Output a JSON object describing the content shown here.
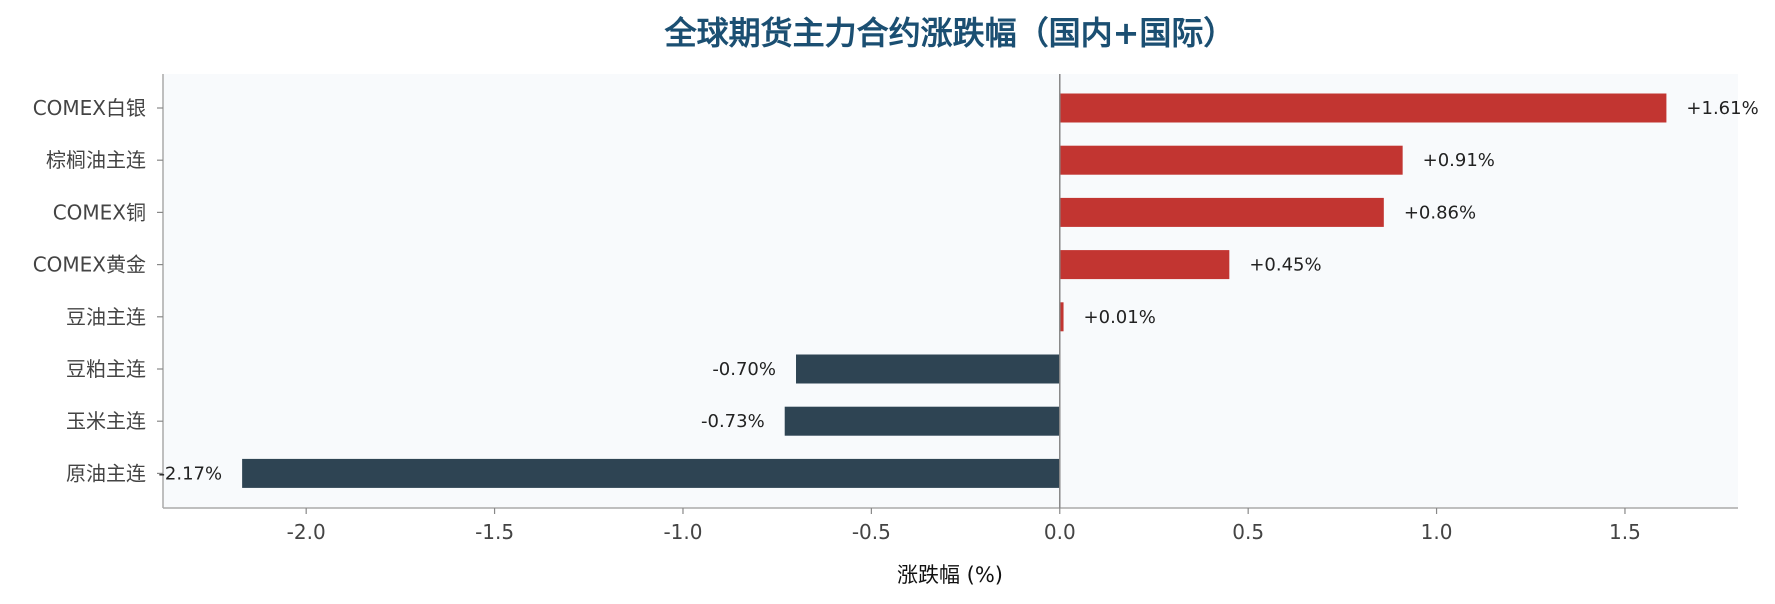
{
  "chart_data": {
    "type": "bar",
    "orientation": "horizontal",
    "title": "全球期货主力合约涨跌幅（国内+国际）",
    "xlabel": "涨跌幅 (%)",
    "ylabel": "",
    "xlim": [
      -2.38,
      1.8
    ],
    "xticks": [
      -2.0,
      -1.5,
      -1.0,
      -0.5,
      0.0,
      0.5,
      1.0,
      1.5
    ],
    "xtick_labels": [
      "-2.0",
      "-1.5",
      "-1.0",
      "-0.5",
      "0.0",
      "0.5",
      "1.0",
      "1.5"
    ],
    "grid": false,
    "categories": [
      "COMEX白银",
      "棕榈油主连",
      "COMEX铜",
      "COMEX黄金",
      "豆油主连",
      "豆粕主连",
      "玉米主连",
      "原油主连"
    ],
    "values": [
      1.61,
      0.91,
      0.86,
      0.45,
      0.01,
      -0.7,
      -0.73,
      -2.17
    ],
    "data_labels": [
      "+1.61%",
      "+0.91%",
      "+0.86%",
      "+0.45%",
      "+0.01%",
      "-0.70%",
      "-0.73%",
      "-2.17%"
    ],
    "colors": {
      "positive": "#c23531",
      "negative": "#2e4453",
      "plot_bg": "#f8fafc",
      "zero_line": "#888888",
      "spine": "#aaaaaa"
    }
  }
}
